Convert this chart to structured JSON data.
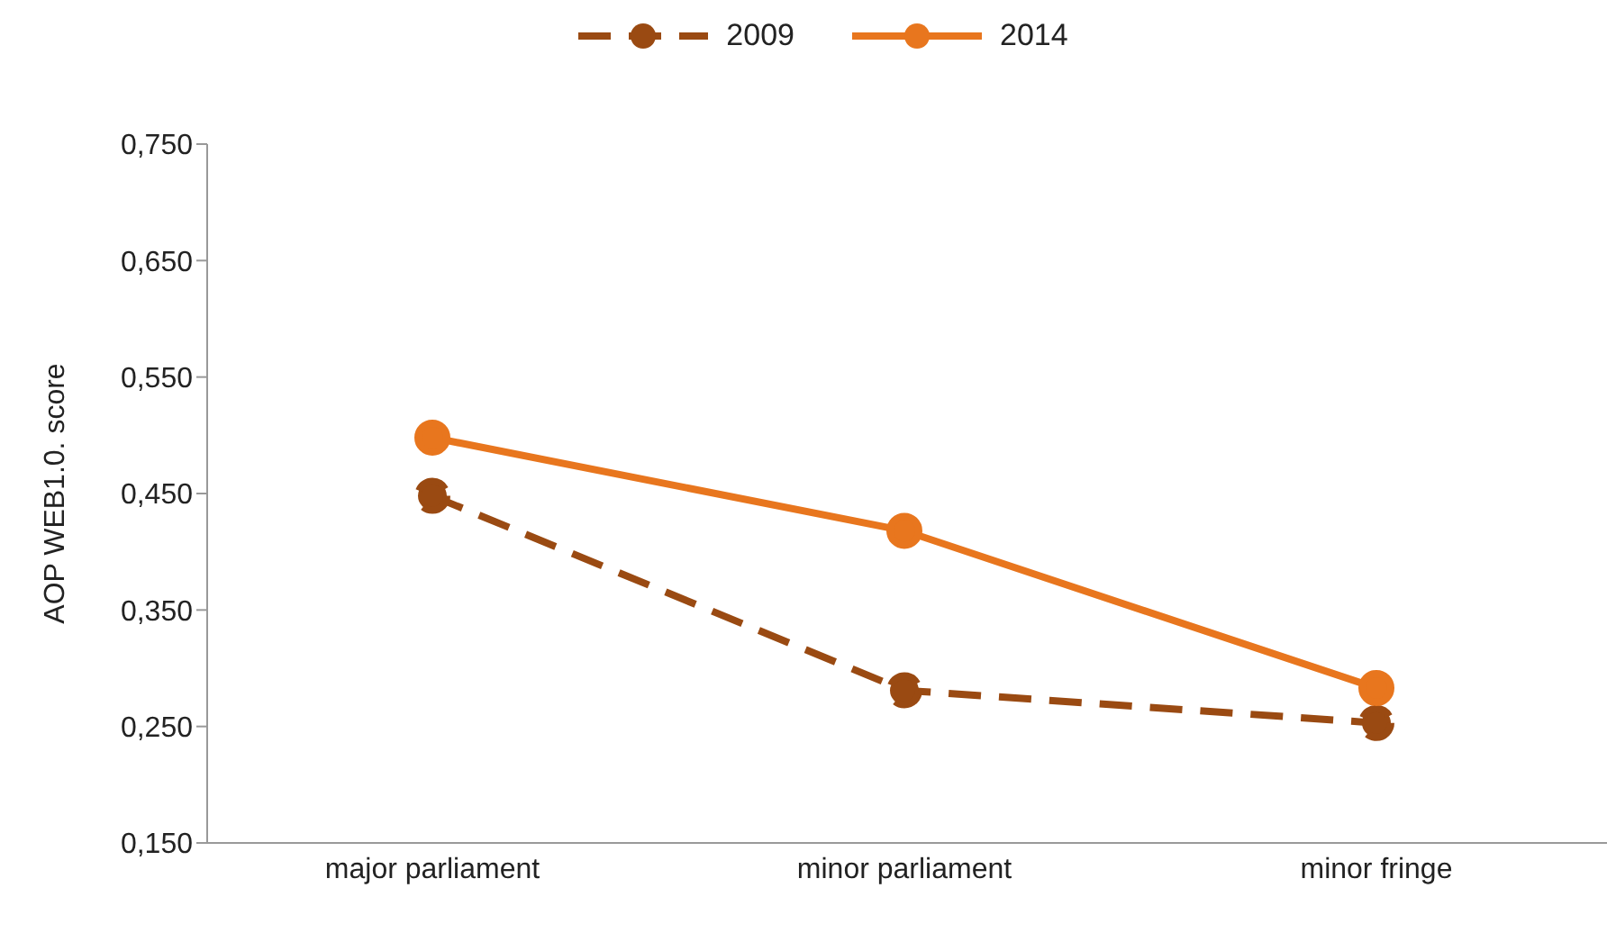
{
  "chart_data": {
    "type": "line",
    "ylabel": "AOP WEB1.0. score",
    "categories": [
      "major parliament",
      "minor parliament",
      "minor fringe"
    ],
    "series": [
      {
        "name": "2009",
        "color": "#9a4a12",
        "values": [
          0.448,
          0.281,
          0.253
        ],
        "line_style": "dashed"
      },
      {
        "name": "2014",
        "color": "#e8761e",
        "values": [
          0.498,
          0.418,
          0.283
        ],
        "line_style": "solid"
      }
    ],
    "ylim": [
      0.15,
      0.75
    ],
    "yticks": [
      {
        "value": 0.15,
        "label": "0,150"
      },
      {
        "value": 0.25,
        "label": "0,250"
      },
      {
        "value": 0.35,
        "label": "0,350"
      },
      {
        "value": 0.45,
        "label": "0,450"
      },
      {
        "value": 0.55,
        "label": "0,550"
      },
      {
        "value": 0.65,
        "label": "0,650"
      },
      {
        "value": 0.75,
        "label": "0,750"
      }
    ],
    "grid": false,
    "legend": "top",
    "marker": "circle"
  }
}
